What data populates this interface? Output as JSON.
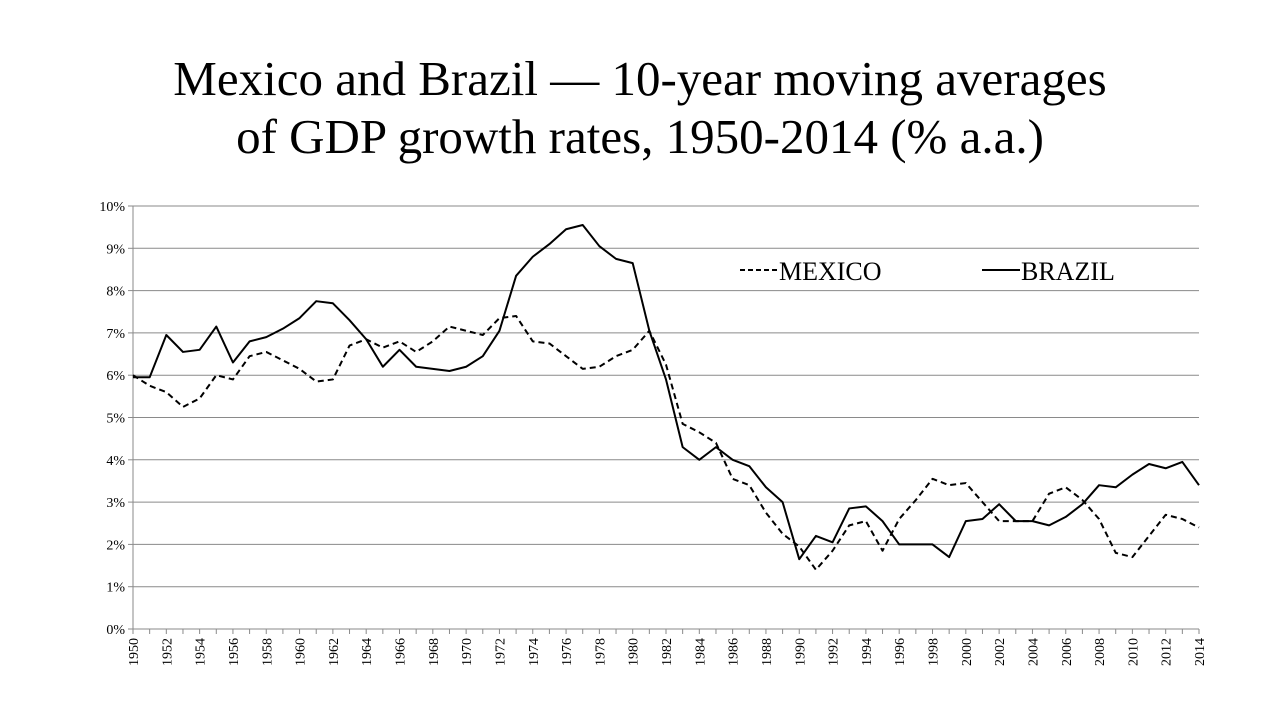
{
  "title": {
    "line1": "Mexico and Brazil — 10-year moving averages",
    "line2": "of  GDP growth rates, 1950-2014 (% a.a.)"
  },
  "chart_data": {
    "type": "line",
    "title": "Mexico and Brazil — 10-year moving averages of GDP growth rates, 1950-2014 (% a.a.)",
    "xlabel": "",
    "ylabel": "",
    "ylim": [
      0,
      10
    ],
    "yticks": [
      "0%",
      "1%",
      "2%",
      "3%",
      "4%",
      "5%",
      "6%",
      "7%",
      "8%",
      "9%",
      "10%"
    ],
    "xticks": [
      "1950",
      "1952",
      "1954",
      "1956",
      "1958",
      "1960",
      "1962",
      "1964",
      "1966",
      "1968",
      "1970",
      "1972",
      "1974",
      "1976",
      "1978",
      "1980",
      "1982",
      "1984",
      "1986",
      "1988",
      "1990",
      "1992",
      "1994",
      "1996",
      "1998",
      "2000",
      "2002",
      "2004",
      "2006",
      "2008",
      "2010",
      "2012",
      "2014"
    ],
    "grid": true,
    "legend_position": "top-right",
    "x": [
      1950,
      1951,
      1952,
      1953,
      1954,
      1955,
      1956,
      1957,
      1958,
      1959,
      1960,
      1961,
      1962,
      1963,
      1964,
      1965,
      1966,
      1967,
      1968,
      1969,
      1970,
      1971,
      1972,
      1973,
      1974,
      1975,
      1976,
      1977,
      1978,
      1979,
      1980,
      1981,
      1982,
      1983,
      1984,
      1985,
      1986,
      1987,
      1988,
      1989,
      1990,
      1991,
      1992,
      1993,
      1994,
      1995,
      1996,
      1997,
      1998,
      1999,
      2000,
      2001,
      2002,
      2003,
      2004,
      2005,
      2006,
      2007,
      2008,
      2009,
      2010,
      2011,
      2012,
      2013,
      2014
    ],
    "series": [
      {
        "name": "MEXICO",
        "style": "dashed",
        "color": "#000000",
        "values": [
          6.0,
          5.75,
          5.6,
          5.25,
          5.45,
          6.0,
          5.9,
          6.45,
          6.55,
          6.35,
          6.15,
          5.85,
          5.9,
          6.7,
          6.85,
          6.65,
          6.8,
          6.55,
          6.8,
          7.15,
          7.05,
          6.95,
          7.35,
          7.4,
          6.8,
          6.75,
          6.45,
          6.15,
          6.2,
          6.45,
          6.6,
          7.05,
          6.25,
          4.85,
          4.65,
          4.4,
          3.55,
          3.4,
          2.75,
          2.25,
          1.95,
          1.4,
          1.85,
          2.45,
          2.55,
          1.85,
          2.6,
          3.05,
          3.55,
          3.4,
          3.45,
          3.0,
          2.55,
          2.55,
          2.55,
          3.2,
          3.35,
          3.05,
          2.6,
          1.8,
          1.7,
          2.2,
          2.7,
          2.6,
          2.4
        ]
      },
      {
        "name": "BRAZIL",
        "style": "solid",
        "color": "#000000",
        "values": [
          5.95,
          5.95,
          6.95,
          6.55,
          6.6,
          7.15,
          6.3,
          6.8,
          6.9,
          7.1,
          7.35,
          7.75,
          7.7,
          7.3,
          6.85,
          6.2,
          6.6,
          6.2,
          6.15,
          6.1,
          6.2,
          6.45,
          7.05,
          8.35,
          8.8,
          9.1,
          9.45,
          9.55,
          9.05,
          8.75,
          8.65,
          7.05,
          5.9,
          4.3,
          4.0,
          4.3,
          4.0,
          3.85,
          3.35,
          3.0,
          1.65,
          2.2,
          2.05,
          2.85,
          2.9,
          2.55,
          2.0,
          2.0,
          2.0,
          1.7,
          2.55,
          2.6,
          2.95,
          2.55,
          2.55,
          2.45,
          2.65,
          2.95,
          3.4,
          3.35,
          3.65,
          3.9,
          3.8,
          3.95,
          3.4
        ]
      }
    ]
  }
}
